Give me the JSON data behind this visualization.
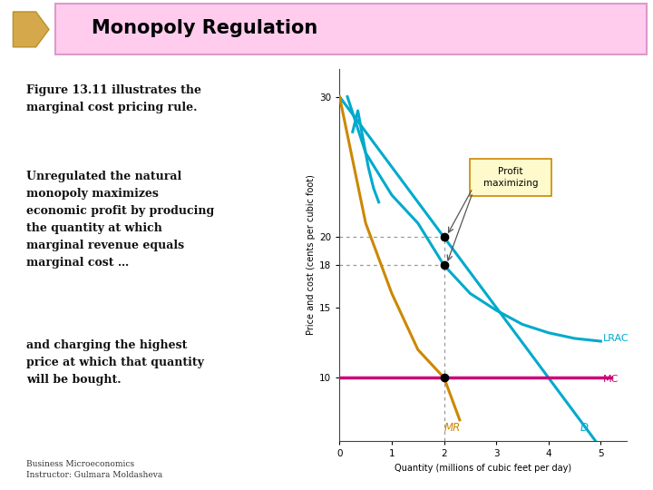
{
  "title": "Monopoly Regulation",
  "background_color": "#ffffff",
  "header_bg": "#ffccee",
  "text1": "Figure 13.11 illustrates the\nmarginal cost pricing rule.",
  "text2": "Unregulated the natural\nmonopoly maximizes\neconomic profit by producing\nthe quantity at which\nmarginal revenue equals\nmarginal cost …",
  "text3": "and charging the highest\nprice at which that quantity\nwill be bought.",
  "footer": "Business Microeconomics\nInstructor: Gulmara Moldasheva",
  "xlabel": "Quantity (millions of cubic feet per day)",
  "ylabel": "Price and cost (cents per cubic foot)",
  "xlim": [
    0,
    5.5
  ],
  "ylim": [
    5.5,
    32
  ],
  "xticks": [
    0,
    1,
    2,
    3,
    4,
    5
  ],
  "yticks": [
    10,
    15,
    18,
    20,
    30
  ],
  "mc_color": "#cc0077",
  "lrac_color": "#00aacc",
  "mr_color": "#cc8800",
  "d_color": "#00aacc",
  "dot_color": "#000000",
  "annotation_bg": "#fffacc",
  "annotation_border": "#cc8800",
  "arrow_fill": "#d4a84b",
  "arrow_edge": "#b8922a"
}
